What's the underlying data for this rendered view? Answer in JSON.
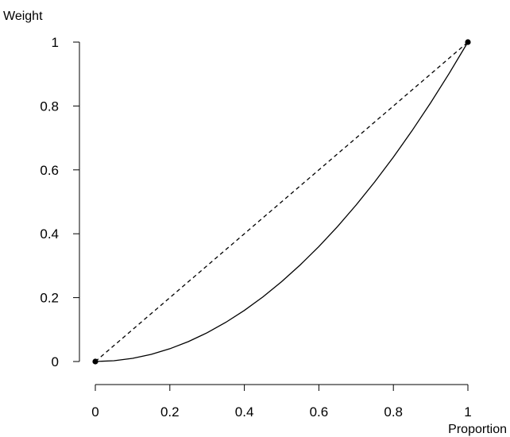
{
  "chart_data": {
    "type": "line",
    "title": "",
    "xlabel": "Proportion",
    "ylabel": "Weight",
    "xlim": [
      0,
      1
    ],
    "ylim": [
      0,
      1
    ],
    "grid": false,
    "x_ticks": [
      {
        "value": 0,
        "label": "0"
      },
      {
        "value": 0.2,
        "label": "0.2"
      },
      {
        "value": 0.4,
        "label": "0.4"
      },
      {
        "value": 0.6,
        "label": "0.6"
      },
      {
        "value": 0.8,
        "label": "0.8"
      },
      {
        "value": 1,
        "label": "1"
      }
    ],
    "y_ticks": [
      {
        "value": 0,
        "label": "0"
      },
      {
        "value": 0.2,
        "label": "0.2"
      },
      {
        "value": 0.4,
        "label": "0.4"
      },
      {
        "value": 0.6,
        "label": "0.6"
      },
      {
        "value": 0.8,
        "label": "0.8"
      },
      {
        "value": 1,
        "label": "1"
      }
    ],
    "series": [
      {
        "style": "dashed",
        "color": "#000000",
        "x": [
          0,
          0.1,
          0.2,
          0.3,
          0.4,
          0.5,
          0.6,
          0.7,
          0.8,
          0.9,
          1
        ],
        "y": [
          0,
          0.1,
          0.2,
          0.3,
          0.4,
          0.5,
          0.6,
          0.7,
          0.8,
          0.9,
          1
        ]
      },
      {
        "style": "solid",
        "color": "#000000",
        "x": [
          0,
          0.05,
          0.1,
          0.15,
          0.2,
          0.25,
          0.3,
          0.35,
          0.4,
          0.45,
          0.5,
          0.55,
          0.6,
          0.65,
          0.7,
          0.75,
          0.8,
          0.85,
          0.9,
          0.95,
          1
        ],
        "y": [
          0,
          0.0025,
          0.01,
          0.0225,
          0.04,
          0.0625,
          0.09,
          0.1225,
          0.16,
          0.2025,
          0.25,
          0.3025,
          0.36,
          0.4225,
          0.49,
          0.5625,
          0.64,
          0.7225,
          0.81,
          0.9025,
          1
        ]
      }
    ],
    "endpoints": [
      {
        "x": 0,
        "y": 0
      },
      {
        "x": 1,
        "y": 1
      }
    ]
  }
}
